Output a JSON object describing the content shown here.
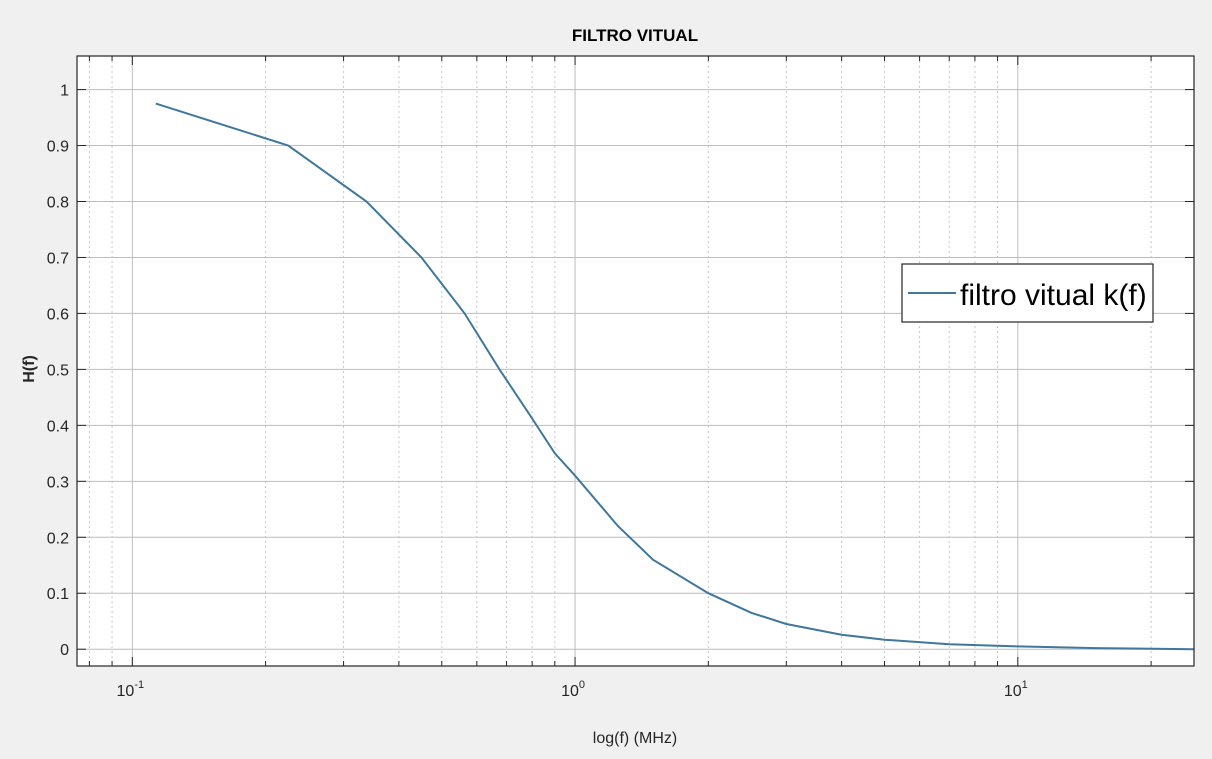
{
  "chart_data": {
    "type": "line",
    "title": "FILTRO VITUAL",
    "xlabel": "log(f) (MHz)",
    "ylabel": "H(f)",
    "xscale": "log",
    "xlim": [
      0.075,
      25
    ],
    "ylim": [
      -0.03,
      1.06
    ],
    "xticks": [
      {
        "base": "10",
        "exp": "-1",
        "value": 0.1
      },
      {
        "base": "10",
        "exp": "0",
        "value": 1
      },
      {
        "base": "10",
        "exp": "1",
        "value": 10
      }
    ],
    "yticks": [
      {
        "label": "0",
        "value": 0
      },
      {
        "label": "0.1",
        "value": 0.1
      },
      {
        "label": "0.2",
        "value": 0.2
      },
      {
        "label": "0.3",
        "value": 0.3
      },
      {
        "label": "0.4",
        "value": 0.4
      },
      {
        "label": "0.5",
        "value": 0.5
      },
      {
        "label": "0.6",
        "value": 0.6
      },
      {
        "label": "0.7",
        "value": 0.7
      },
      {
        "label": "0.8",
        "value": 0.8
      },
      {
        "label": "0.9",
        "value": 0.9
      },
      {
        "label": "1",
        "value": 1
      }
    ],
    "grid": true,
    "legend_position": "right",
    "series": [
      {
        "name": "filtro vitual k(f)",
        "color": "#3f789c",
        "x": [
          0.113,
          0.225,
          0.338,
          0.45,
          0.563,
          0.675,
          0.788,
          0.9,
          1.0,
          1.25,
          1.5,
          2.0,
          2.5,
          3.0,
          4.0,
          5.0,
          7.0,
          10.0,
          15.0,
          25.0
        ],
        "y": [
          0.975,
          0.9,
          0.8,
          0.7,
          0.6,
          0.5,
          0.42,
          0.35,
          0.31,
          0.22,
          0.16,
          0.1,
          0.065,
          0.045,
          0.026,
          0.017,
          0.009,
          0.005,
          0.002,
          0.0
        ]
      }
    ]
  }
}
